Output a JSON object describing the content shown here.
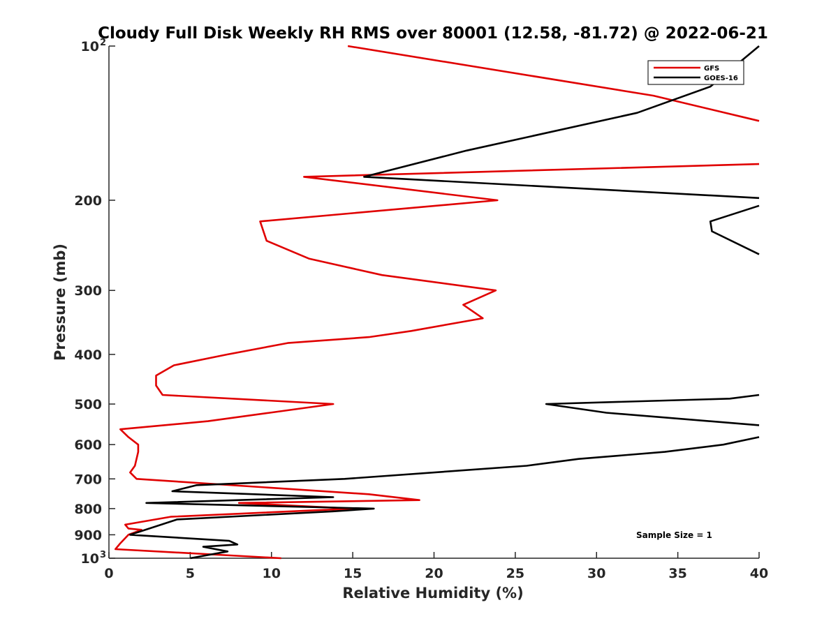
{
  "chart_data": {
    "type": "line",
    "title": "Cloudy Full Disk Weekly RH RMS over 80001 (12.58, -81.72) @ 2022-06-21",
    "xlabel": "Relative Humidity (%)",
    "ylabel": "Pressure (mb)",
    "xlim": [
      0,
      40
    ],
    "ylim": [
      100,
      1000
    ],
    "y_scale": "log",
    "y_reversed": true,
    "x_ticks": [
      "0",
      "5",
      "10",
      "15",
      "20",
      "25",
      "30",
      "35",
      "40"
    ],
    "y_ticks": [
      {
        "value": 100,
        "label": "10",
        "sup": "2"
      },
      {
        "value": 200,
        "label": "200",
        "sup": ""
      },
      {
        "value": 300,
        "label": "300",
        "sup": ""
      },
      {
        "value": 400,
        "label": "400",
        "sup": ""
      },
      {
        "value": 500,
        "label": "500",
        "sup": ""
      },
      {
        "value": 600,
        "label": "600",
        "sup": ""
      },
      {
        "value": 700,
        "label": "700",
        "sup": ""
      },
      {
        "value": 800,
        "label": "800",
        "sup": ""
      },
      {
        "value": 900,
        "label": "900",
        "sup": ""
      },
      {
        "value": 1000,
        "label": "10",
        "sup": "3"
      }
    ],
    "grid": false,
    "legend_position": "top-right",
    "annotation": "Sample Size = 1",
    "series": [
      {
        "name": "GFS",
        "color": "#e00000",
        "points": [
          [
            14.7,
            100
          ],
          [
            33.5,
            125
          ],
          [
            40,
            140
          ],
          [
            null,
            null
          ],
          [
            40,
            170
          ],
          [
            12.0,
            180
          ],
          [
            23.9,
            200
          ],
          [
            9.3,
            220
          ],
          [
            9.7,
            240
          ],
          [
            12.3,
            260
          ],
          [
            16.8,
            280
          ],
          [
            23.8,
            300
          ],
          [
            21.8,
            320
          ],
          [
            23.0,
            340
          ],
          [
            18.6,
            360
          ],
          [
            16.0,
            370
          ],
          [
            11.0,
            380
          ],
          [
            7.3,
            400
          ],
          [
            4.0,
            420
          ],
          [
            2.9,
            440
          ],
          [
            2.9,
            460
          ],
          [
            3.3,
            480
          ],
          [
            13.8,
            500
          ],
          [
            9.9,
            520
          ],
          [
            6.1,
            540
          ],
          [
            0.7,
            560
          ],
          [
            1.2,
            580
          ],
          [
            1.8,
            600
          ],
          [
            1.8,
            620
          ],
          [
            1.6,
            660
          ],
          [
            1.3,
            680
          ],
          [
            1.7,
            700
          ],
          [
            16.0,
            750
          ],
          [
            19.1,
            770
          ],
          [
            8.0,
            780
          ],
          [
            15.0,
            800
          ],
          [
            3.8,
            830
          ],
          [
            1.0,
            860
          ],
          [
            1.2,
            875
          ],
          [
            2.0,
            880
          ],
          [
            1.2,
            900
          ],
          [
            0.7,
            935
          ],
          [
            0.4,
            960
          ],
          [
            10.6,
            1000
          ]
        ]
      },
      {
        "name": "GOES-16",
        "color": "#000000",
        "points": [
          [
            40,
            100
          ],
          [
            37.0,
            120
          ],
          [
            32.5,
            135
          ],
          [
            22.0,
            160
          ],
          [
            15.7,
            180
          ],
          [
            40,
            198
          ],
          [
            null,
            null
          ],
          [
            40,
            205
          ],
          [
            37.0,
            220
          ],
          [
            37.1,
            230
          ],
          [
            40,
            255
          ],
          [
            null,
            null
          ],
          [
            40,
            480
          ],
          [
            38.2,
            488
          ],
          [
            26.9,
            500
          ],
          [
            30.6,
            520
          ],
          [
            40,
            550
          ],
          [
            null,
            null
          ],
          [
            40,
            580
          ],
          [
            37.8,
            600
          ],
          [
            34.2,
            620
          ],
          [
            28.9,
            640
          ],
          [
            25.7,
            660
          ],
          [
            14.5,
            700
          ],
          [
            5.4,
            720
          ],
          [
            3.9,
            740
          ],
          [
            13.8,
            760
          ],
          [
            2.3,
            780
          ],
          [
            16.3,
            800
          ],
          [
            13.8,
            810
          ],
          [
            4.2,
            840
          ],
          [
            1.3,
            900
          ],
          [
            7.4,
            925
          ],
          [
            7.9,
            940
          ],
          [
            5.8,
            950
          ],
          [
            7.3,
            970
          ],
          [
            5.0,
            1000
          ]
        ]
      }
    ]
  }
}
